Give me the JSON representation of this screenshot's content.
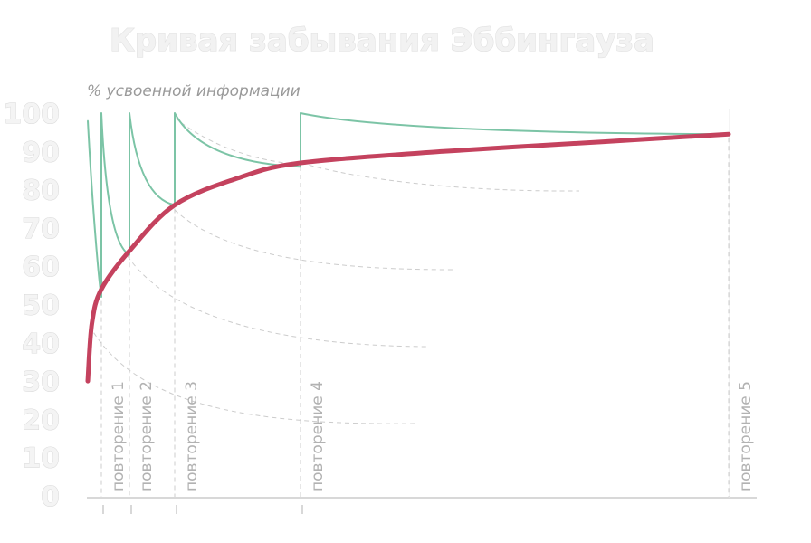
{
  "chart_data": {
    "type": "line",
    "title": "Кривая забывания Эббингауза",
    "ylabel": "% усвоенной информации",
    "xlabel": "",
    "ylim": [
      0,
      100
    ],
    "yticks": [
      "0",
      "10",
      "20",
      "30",
      "40",
      "50",
      "60",
      "70",
      "80",
      "90",
      "100"
    ],
    "x_scale": "nonlinear",
    "grid": false,
    "legend": "none",
    "colors": {
      "retention": "#c4425e",
      "forgetting": "#7cc4a6",
      "dashed": "#cccccc",
      "axis": "#d8d8d8",
      "ticks": "#d8d8d8"
    },
    "repetitions": [
      {
        "label": "повторение 1",
        "t": 1
      },
      {
        "label": "повторение 2",
        "t": 2
      },
      {
        "label": "повторение 3",
        "t": 3.5
      },
      {
        "label": "повторение 4",
        "t": 7.5
      },
      {
        "label": "повторение 5",
        "t": 21
      }
    ],
    "series": [
      {
        "type": "retention",
        "points": [
          [
            0,
            30
          ],
          [
            0.3,
            45
          ],
          [
            1,
            54
          ],
          [
            2,
            64
          ],
          [
            3.5,
            76
          ],
          [
            5.5,
            83
          ],
          [
            7.5,
            87
          ],
          [
            12,
            90
          ],
          [
            17,
            92.5
          ],
          [
            21,
            94.5
          ]
        ]
      },
      {
        "type": "forgetting",
        "points": [
          [
            0,
            98
          ],
          [
            1,
            52
          ],
          [
            1,
            100
          ],
          [
            2,
            63
          ],
          [
            2,
            100
          ],
          [
            3.5,
            76
          ],
          [
            3.5,
            100
          ],
          [
            7.5,
            86
          ],
          [
            7.5,
            100
          ],
          [
            21,
            94.5
          ]
        ]
      }
    ]
  }
}
